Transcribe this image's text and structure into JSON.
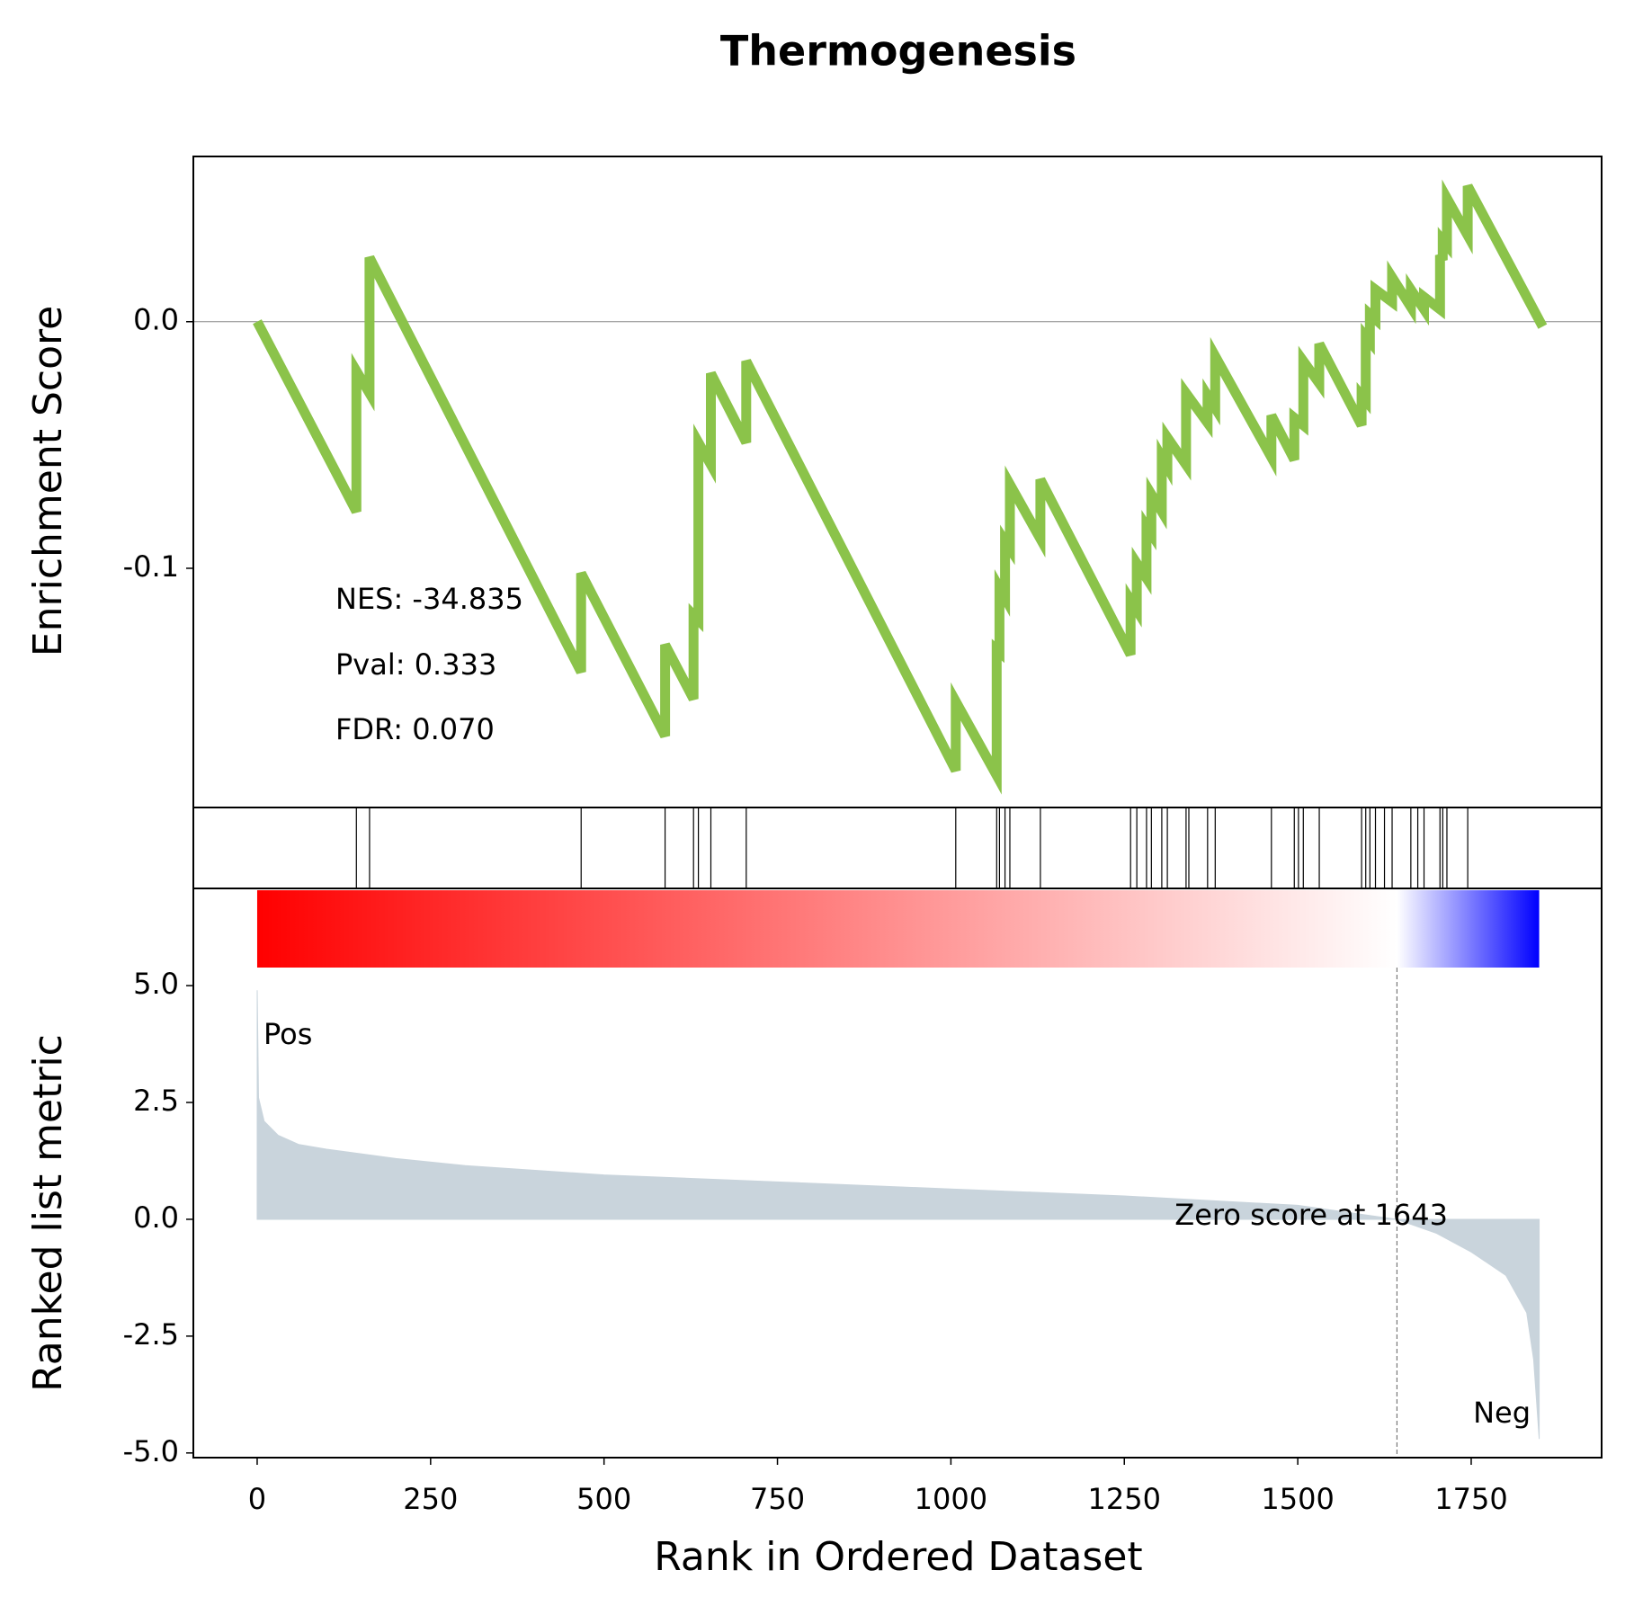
{
  "chart_data": {
    "type": "gsea",
    "title": "Thermogenesis",
    "xlabel": "Rank in Ordered Dataset",
    "xlim": [
      -92,
      1938
    ],
    "xticks": [
      0,
      250,
      500,
      750,
      1000,
      1250,
      1500,
      1750
    ],
    "es": {
      "ylabel": "Enrichment Score",
      "ylim": [
        -0.197,
        0.067
      ],
      "yticks": [
        {
          "value": 0,
          "label": "0.0"
        },
        {
          "value": -0.1,
          "label": "-0.1"
        }
      ],
      "color": "#8bc34a",
      "x": [
        0,
        143,
        143,
        162,
        162,
        467,
        467,
        588,
        588,
        629,
        629,
        636,
        636,
        654,
        654,
        705,
        705,
        1007,
        1007,
        1066,
        1066,
        1070,
        1070,
        1078,
        1078,
        1085,
        1085,
        1129,
        1129,
        1259,
        1259,
        1268,
        1268,
        1282,
        1282,
        1289,
        1289,
        1304,
        1304,
        1312,
        1312,
        1339,
        1339,
        1370,
        1370,
        1381,
        1381,
        1462,
        1462,
        1495,
        1495,
        1508,
        1508,
        1531,
        1531,
        1592,
        1592,
        1598,
        1598,
        1604,
        1604,
        1612,
        1612,
        1636,
        1636,
        1663,
        1663,
        1682,
        1682,
        1705,
        1705,
        1709,
        1709,
        1715,
        1715,
        1745,
        1745,
        1853
      ],
      "values": [
        0,
        -0.077,
        -0.02,
        -0.029,
        0.026,
        -0.142,
        -0.102,
        -0.168,
        -0.131,
        -0.153,
        -0.119,
        -0.121,
        -0.049,
        -0.058,
        -0.021,
        -0.049,
        -0.016,
        -0.182,
        -0.154,
        -0.184,
        -0.133,
        -0.134,
        -0.108,
        -0.112,
        -0.089,
        -0.092,
        -0.066,
        -0.088,
        -0.064,
        -0.135,
        -0.113,
        -0.117,
        -0.098,
        -0.104,
        -0.083,
        -0.086,
        -0.07,
        -0.077,
        -0.055,
        -0.059,
        -0.047,
        -0.058,
        -0.029,
        -0.041,
        -0.03,
        -0.035,
        -0.014,
        -0.055,
        -0.038,
        -0.056,
        -0.039,
        -0.042,
        -0.016,
        -0.025,
        -0.009,
        -0.042,
        -0.03,
        -0.032,
        -0.006,
        -0.008,
        0.003,
        0.001,
        0.013,
        0.008,
        0.018,
        0.006,
        0.013,
        0.005,
        0.01,
        0.005,
        0.027,
        0.025,
        0.033,
        0.031,
        0.05,
        0.035,
        0.055,
        -0.002
      ]
    },
    "stats": [
      "NES: -34.835",
      "Pval: 0.333",
      "FDR: 0.070"
    ],
    "hits": [
      143,
      162,
      467,
      588,
      629,
      636,
      654,
      705,
      1007,
      1066,
      1070,
      1078,
      1085,
      1129,
      1259,
      1268,
      1282,
      1289,
      1304,
      1312,
      1339,
      1343,
      1370,
      1381,
      1462,
      1495,
      1501,
      1508,
      1531,
      1592,
      1598,
      1604,
      1612,
      1625,
      1636,
      1663,
      1673,
      1682,
      1705,
      1709,
      1715,
      1745
    ],
    "metric": {
      "ylabel": "Ranked list metric",
      "ylim": [
        -5.1,
        7.08
      ],
      "yticks": [
        {
          "value": 5,
          "label": "5.0"
        },
        {
          "value": 2.5,
          "label": "2.5"
        },
        {
          "value": 0,
          "label": "0.0"
        },
        {
          "value": -2.5,
          "label": "-2.5"
        },
        {
          "value": -5,
          "label": "-5.0"
        }
      ],
      "color": "#c9d4dc",
      "x": [
        0,
        2,
        10,
        30,
        60,
        100,
        200,
        300,
        500,
        750,
        1000,
        1250,
        1500,
        1643,
        1700,
        1750,
        1800,
        1830,
        1840,
        1848
      ],
      "values": [
        4.9,
        2.6,
        2.1,
        1.8,
        1.6,
        1.5,
        1.3,
        1.15,
        0.95,
        0.8,
        0.65,
        0.5,
        0.3,
        0,
        -0.3,
        -0.7,
        -1.2,
        -2.0,
        -3.0,
        -4.7
      ],
      "pos_label": "Pos",
      "neg_label": "Neg",
      "pos_color": "#ff0000",
      "neg_color": "#0000ff",
      "zero_text": "Zero score at 1643",
      "zero_rank": 1643
    }
  }
}
